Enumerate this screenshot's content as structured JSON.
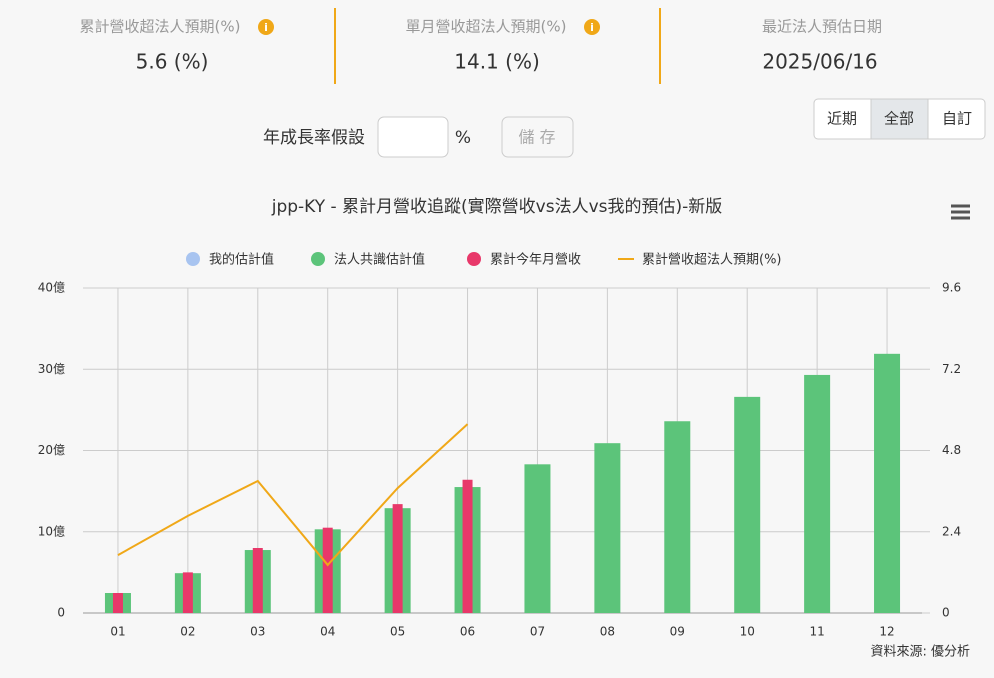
{
  "stats": [
    {
      "label": "累計營收超法人預期(%)",
      "value": "5.6 (%)"
    },
    {
      "label": "單月營收超法人預期(%)",
      "value": "14.1 (%)"
    },
    {
      "label": "最近法人預估日期",
      "value": "2025/06/16"
    }
  ],
  "growth_label": "年成長率假設",
  "growth_unit": "%",
  "save": "儲 存",
  "range_buttons": [
    "近期",
    "全部",
    "自訂"
  ],
  "chart_data": {
    "type": "bar",
    "title": "jpp-KY - 累計月營收追蹤(實際營收vs法人vs我的預估)-新版",
    "categories": [
      "01",
      "02",
      "03",
      "04",
      "05",
      "06",
      "07",
      "08",
      "09",
      "10",
      "11",
      "12"
    ],
    "series": [
      {
        "name": "我的估計值",
        "color": "#a8c4f0",
        "values": [
          null,
          null,
          null,
          null,
          null,
          null,
          null,
          null,
          null,
          null,
          null,
          null
        ]
      },
      {
        "name": "法人共識估計值",
        "color": "#5cc47a",
        "values": [
          2.46,
          4.9,
          7.75,
          10.3,
          12.9,
          15.5,
          18.3,
          20.9,
          23.6,
          26.6,
          29.3,
          31.9
        ]
      },
      {
        "name": "累計今年月營收",
        "color": "#e8386a",
        "values": [
          2.46,
          5.0,
          8.0,
          10.5,
          13.4,
          16.4,
          null,
          null,
          null,
          null,
          null,
          null
        ]
      },
      {
        "name": "累計營收超法人預期(%)",
        "type": "line",
        "axis": "y2",
        "color": "#f0a818",
        "values": [
          1.71,
          2.87,
          3.9,
          1.42,
          3.69,
          5.58,
          null,
          null,
          null,
          null,
          null,
          null
        ]
      }
    ],
    "ylim": [
      0,
      40
    ],
    "yticks": [
      0,
      {
        "value": 10,
        "label": "10億"
      },
      {
        "value": 20,
        "label": "20億"
      },
      {
        "value": 30,
        "label": "30億"
      },
      {
        "value": 40,
        "label": "40億"
      }
    ],
    "y2lim": [
      0,
      9.6
    ],
    "y2ticks": [
      0,
      2.4,
      4.8,
      7.2,
      9.6
    ],
    "grid": true,
    "source": "資料來源: 優分析"
  }
}
